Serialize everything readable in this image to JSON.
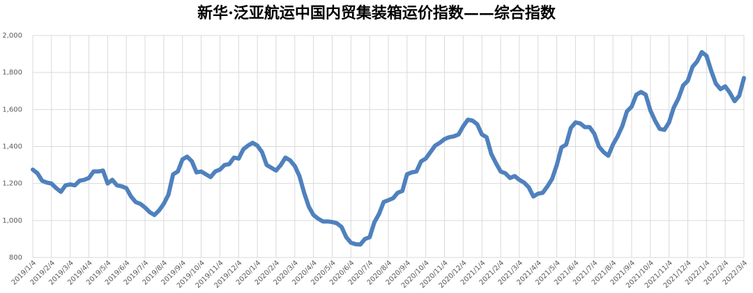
{
  "chart_data": {
    "type": "line",
    "title": "新华·泛亚航运中国内贸集装箱运价指数——综合指数",
    "categories": [
      "2019/1/4",
      null,
      null,
      null,
      "2019/2/4",
      null,
      null,
      null,
      "2019/3/4",
      null,
      null,
      null,
      "2019/4/4",
      null,
      null,
      null,
      "2019/5/4",
      null,
      null,
      null,
      "2019/6/4",
      null,
      null,
      null,
      "2019/7/4",
      null,
      null,
      null,
      "2019/8/4",
      null,
      null,
      null,
      "2019/9/4",
      null,
      null,
      null,
      "2019/10/4",
      null,
      null,
      null,
      "2019/11/4",
      null,
      null,
      null,
      "2019/12/4",
      null,
      null,
      null,
      "2020/1/4",
      null,
      null,
      null,
      "2020/2/4",
      null,
      null,
      null,
      "2020/3/4",
      null,
      null,
      null,
      "2020/4/4",
      null,
      null,
      null,
      "2020/5/4",
      null,
      null,
      null,
      "2020/6/4",
      null,
      null,
      null,
      "2020/7/4",
      null,
      null,
      null,
      "2020/8/4",
      null,
      null,
      null,
      "2020/9/4",
      null,
      null,
      null,
      "2020/10/4",
      null,
      null,
      null,
      "2020/11/4",
      null,
      null,
      null,
      "2020/12/4",
      null,
      null,
      null,
      "2021/1/4",
      null,
      null,
      null,
      "2021/2/4",
      null,
      null,
      null,
      "2021/3/4",
      null,
      null,
      null,
      "2021/4/4",
      null,
      null,
      null,
      "2021/5/4",
      null,
      null,
      null,
      "2021/6/4",
      null,
      null,
      null,
      "2021/7/4",
      null,
      null,
      null,
      "2021/8/4",
      null,
      null,
      null,
      "2021/9/4",
      null,
      null,
      null,
      "2021/10/4",
      null,
      null,
      null,
      "2021/11/4",
      null,
      null,
      null,
      "2021/12/4",
      null,
      null,
      null,
      "2022/1/4",
      null,
      null,
      null,
      "2022/2/4",
      null,
      null,
      null,
      "2022/3/4"
    ],
    "series": [
      {
        "color": "#4f81bd",
        "values": [
          1275,
          1255,
          1215,
          1205,
          1200,
          1175,
          1155,
          1190,
          1195,
          1190,
          1215,
          1220,
          1230,
          1265,
          1265,
          1270,
          1200,
          1220,
          1190,
          1185,
          1175,
          1130,
          1100,
          1090,
          1070,
          1045,
          1030,
          1055,
          1090,
          1140,
          1250,
          1265,
          1330,
          1345,
          1320,
          1260,
          1265,
          1250,
          1235,
          1265,
          1275,
          1300,
          1305,
          1340,
          1335,
          1385,
          1405,
          1420,
          1405,
          1370,
          1300,
          1285,
          1270,
          1300,
          1340,
          1325,
          1295,
          1240,
          1150,
          1075,
          1030,
          1010,
          995,
          995,
          992,
          985,
          965,
          910,
          880,
          872,
          870,
          900,
          910,
          990,
          1035,
          1100,
          1110,
          1120,
          1150,
          1160,
          1250,
          1260,
          1265,
          1320,
          1335,
          1370,
          1405,
          1420,
          1440,
          1450,
          1455,
          1465,
          1510,
          1545,
          1540,
          1520,
          1465,
          1450,
          1360,
          1310,
          1265,
          1255,
          1230,
          1240,
          1220,
          1205,
          1180,
          1130,
          1145,
          1150,
          1185,
          1225,
          1300,
          1395,
          1410,
          1500,
          1530,
          1525,
          1505,
          1505,
          1470,
          1400,
          1370,
          1350,
          1410,
          1455,
          1510,
          1590,
          1615,
          1680,
          1695,
          1680,
          1595,
          1540,
          1495,
          1490,
          1530,
          1610,
          1660,
          1730,
          1755,
          1830,
          1860,
          1910,
          1890,
          1810,
          1740,
          1710,
          1725,
          1690,
          1645,
          1675,
          1770
        ]
      }
    ],
    "ylim": [
      800,
      2000
    ],
    "yticks": [
      800,
      {
        "value": 1000,
        "label": "1,000"
      },
      {
        "value": 1200,
        "label": "1,200"
      },
      {
        "value": 1400,
        "label": "1,400"
      },
      {
        "value": 1600,
        "label": "1,600"
      },
      {
        "value": 1800,
        "label": "1,800"
      },
      {
        "value": 2000,
        "label": "2,000"
      }
    ],
    "grid": true
  }
}
